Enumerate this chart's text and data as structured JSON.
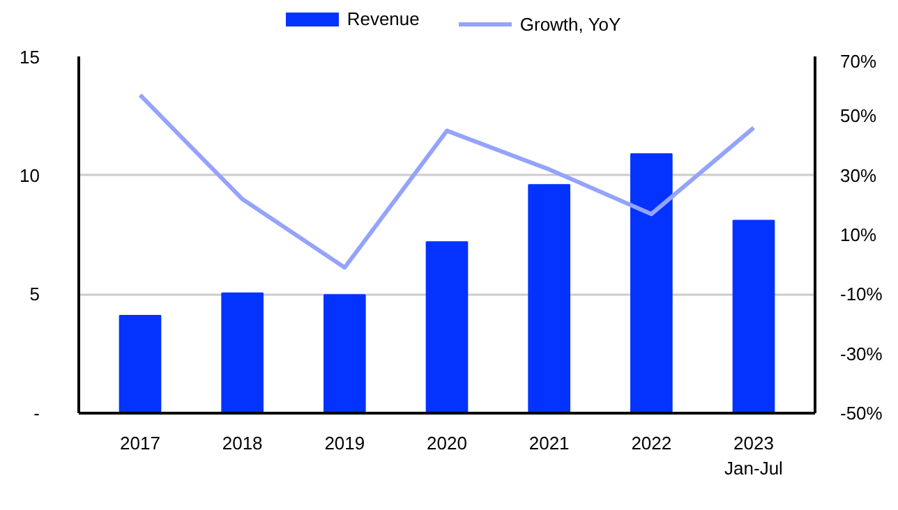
{
  "chart_data": {
    "type": "bar",
    "categories": [
      "2017",
      "2018",
      "2019",
      "2020",
      "2021",
      "2022",
      "2023\nJan-Jul"
    ],
    "series": [
      {
        "name": "Revenue",
        "color": "#0433ff",
        "values": [
          4.1,
          5.05,
          4.97,
          7.2,
          9.6,
          10.9,
          8.1
        ]
      },
      {
        "name": "Growth, YoY",
        "type": "line",
        "axis": "y2",
        "color": "#94a3fb",
        "values": [
          57,
          22,
          -1,
          45,
          32,
          17,
          46
        ]
      }
    ],
    "ylim": [
      0,
      15
    ],
    "yticks": [
      {
        "value": 0,
        "label": "-"
      },
      5,
      10,
      15
    ],
    "y2lim": [
      -50,
      70
    ],
    "y2ticks": [
      {
        "value": -50,
        "label": "-50%"
      },
      {
        "value": -30,
        "label": "-30%"
      },
      {
        "value": -10,
        "label": "-10%"
      },
      {
        "value": 10,
        "label": "10%"
      },
      {
        "value": 30,
        "label": "30%"
      },
      {
        "value": 50,
        "label": "50%"
      },
      {
        "value": 70,
        "label": "70%"
      }
    ],
    "grid": "y",
    "legend": "top"
  }
}
